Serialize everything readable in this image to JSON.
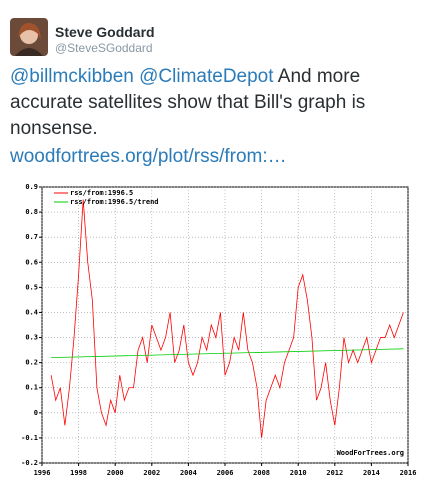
{
  "tweet": {
    "name": "Steve Goddard",
    "handle": "@SteveSGoddard",
    "mentions": [
      "@billmckibben",
      "@ClimateDepot"
    ],
    "text": "And more accurate satellites show that Bill's graph is nonsense.",
    "link": "woodfortrees.org/plot/rss/from:…"
  },
  "chart_data": {
    "type": "line",
    "annotation": "WoodForTrees.org",
    "xlim": [
      1996,
      2016
    ],
    "xticks": [
      1996,
      1998,
      2000,
      2002,
      2004,
      2006,
      2008,
      2010,
      2012,
      2014,
      2016
    ],
    "ylim": [
      -0.2,
      0.9
    ],
    "yticks": [
      -0.2,
      -0.1,
      0,
      0.1,
      0.2,
      0.3,
      0.4,
      0.5,
      0.6,
      0.7,
      0.8,
      0.9
    ],
    "grid": true,
    "legend": "top-left",
    "series": [
      {
        "name": "rss/from:1996.5",
        "color": "#ff0000",
        "x": [
          1996.5,
          1996.75,
          1997,
          1997.25,
          1997.5,
          1997.75,
          1998,
          1998.25,
          1998.5,
          1998.75,
          1999,
          1999.25,
          1999.5,
          1999.75,
          2000,
          2000.25,
          2000.5,
          2000.75,
          2001,
          2001.25,
          2001.5,
          2001.75,
          2002,
          2002.25,
          2002.5,
          2002.75,
          2003,
          2003.25,
          2003.5,
          2003.75,
          2004,
          2004.25,
          2004.5,
          2004.75,
          2005,
          2005.25,
          2005.5,
          2005.75,
          2006,
          2006.25,
          2006.5,
          2006.75,
          2007,
          2007.25,
          2007.5,
          2007.75,
          2008,
          2008.25,
          2008.5,
          2008.75,
          2009,
          2009.25,
          2009.5,
          2009.75,
          2010,
          2010.25,
          2010.5,
          2010.75,
          2011,
          2011.25,
          2011.5,
          2011.75,
          2012,
          2012.25,
          2012.5,
          2012.75,
          2013,
          2013.25,
          2013.5,
          2013.75,
          2014,
          2014.25,
          2014.5,
          2014.75,
          2015,
          2015.25,
          2015.5,
          2015.75
        ],
        "values": [
          0.15,
          0.05,
          0.1,
          -0.05,
          0.1,
          0.3,
          0.55,
          0.85,
          0.6,
          0.45,
          0.1,
          0.0,
          -0.05,
          0.05,
          0.0,
          0.15,
          0.05,
          0.1,
          0.1,
          0.25,
          0.3,
          0.2,
          0.35,
          0.3,
          0.25,
          0.3,
          0.4,
          0.2,
          0.25,
          0.35,
          0.2,
          0.15,
          0.2,
          0.3,
          0.25,
          0.35,
          0.3,
          0.4,
          0.15,
          0.2,
          0.3,
          0.25,
          0.4,
          0.25,
          0.2,
          0.1,
          -0.1,
          0.05,
          0.1,
          0.15,
          0.1,
          0.2,
          0.25,
          0.3,
          0.5,
          0.55,
          0.45,
          0.3,
          0.05,
          0.1,
          0.2,
          0.05,
          -0.05,
          0.1,
          0.3,
          0.2,
          0.25,
          0.2,
          0.25,
          0.3,
          0.2,
          0.25,
          0.3,
          0.3,
          0.35,
          0.3,
          0.35,
          0.4
        ]
      },
      {
        "name": "rss/from:1996.5/trend",
        "color": "#00cc00",
        "x": [
          1996.5,
          2015.75
        ],
        "values": [
          0.22,
          0.255
        ]
      }
    ]
  }
}
